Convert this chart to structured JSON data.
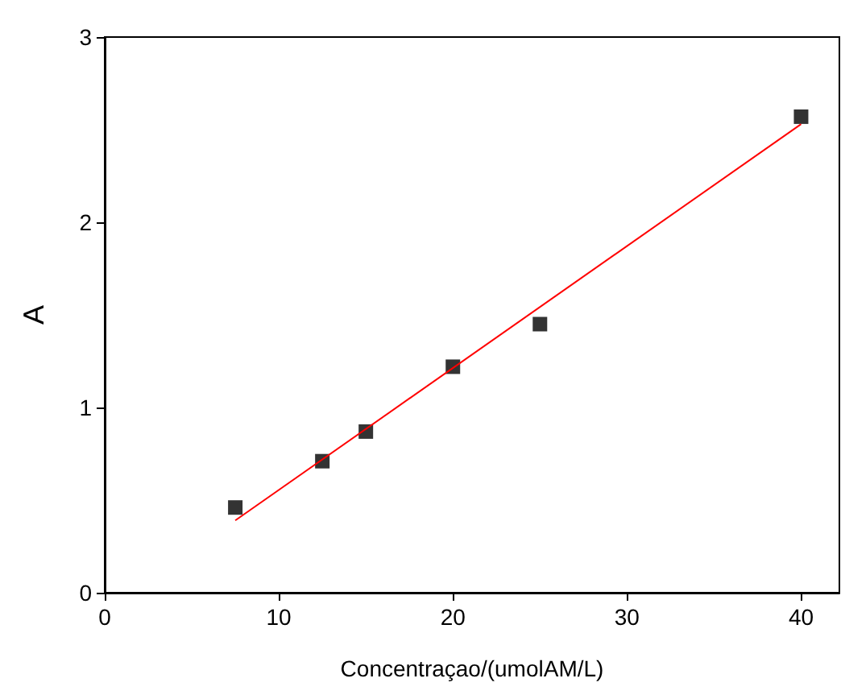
{
  "chart_data": {
    "type": "scatter",
    "xlabel": "Concentraçao/(umolAM/L)",
    "ylabel": "A",
    "xlim": [
      0,
      42.2
    ],
    "ylim": [
      0,
      3
    ],
    "xticks": [
      0,
      10,
      20,
      30,
      40
    ],
    "yticks": [
      0,
      1,
      2,
      3
    ],
    "grid": false,
    "series": [
      {
        "marker": "square",
        "color": "#000000",
        "x": [
          7.5,
          12.5,
          15,
          20,
          25,
          40
        ],
        "values": [
          0.46,
          0.71,
          0.87,
          1.22,
          1.45,
          2.57
        ]
      },
      {
        "type": "line",
        "marker": "none",
        "color": "#ff0000",
        "x": [
          7.5,
          40
        ],
        "values": [
          0.39,
          2.53
        ]
      }
    ]
  }
}
